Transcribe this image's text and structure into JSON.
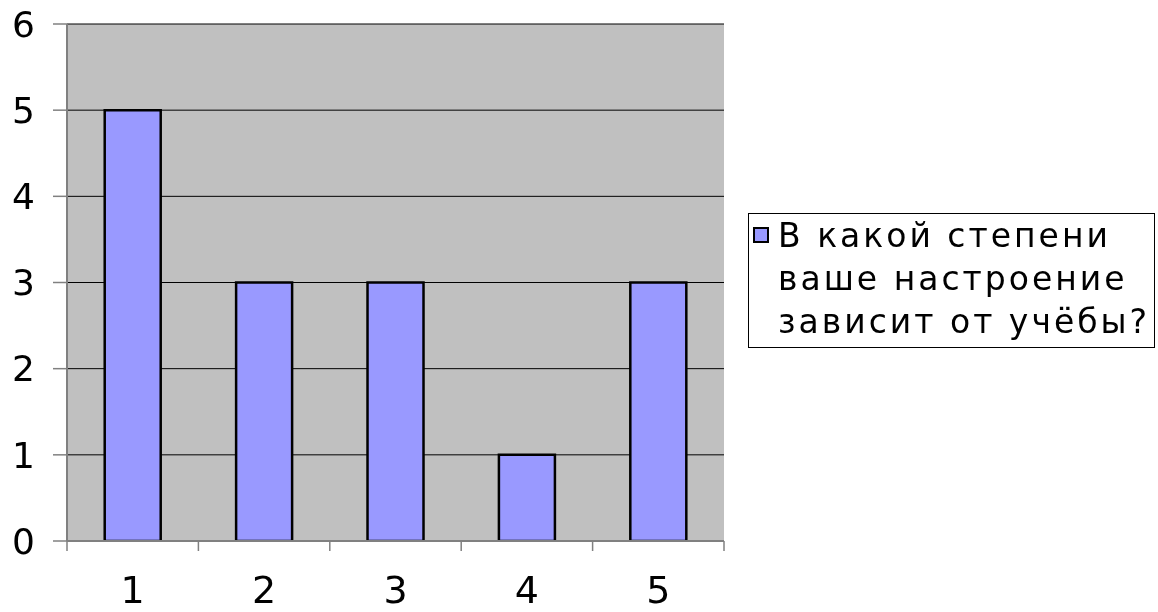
{
  "chart_data": {
    "type": "bar",
    "categories": [
      "1",
      "2",
      "3",
      "4",
      "5"
    ],
    "series": [
      {
        "name": "В какой степени ваше настроение зависит от учёбы?",
        "color": "#9999ff",
        "values": [
          5,
          3,
          3,
          1,
          3
        ]
      }
    ],
    "ylim": [
      0,
      6
    ],
    "yticks": [
      0,
      1,
      2,
      3,
      4,
      5,
      6
    ],
    "grid": "y",
    "legend": "right"
  }
}
